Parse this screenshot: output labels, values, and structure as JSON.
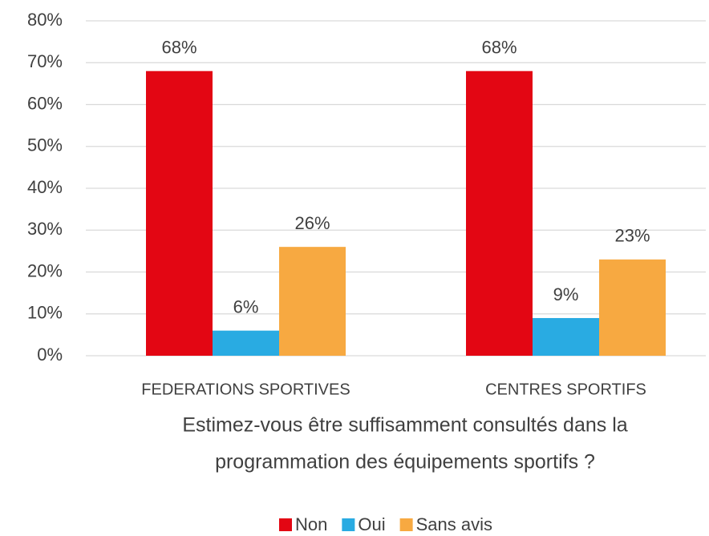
{
  "chart_data": {
    "type": "bar",
    "categories": [
      "FEDERATIONS SPORTIVES",
      "CENTRES SPORTIFS"
    ],
    "x_label": [
      "Estimez-vous être suffisamment consultés dans la",
      "programmation des équipements sportifs ?"
    ],
    "series": [
      {
        "name": "Non",
        "color": "#e30613",
        "values": [
          68,
          68
        ],
        "value_labels": [
          "68%",
          "68%"
        ]
      },
      {
        "name": "Oui",
        "color": "#29abe2",
        "values": [
          6,
          9
        ],
        "value_labels": [
          "6%",
          "9%"
        ]
      },
      {
        "name": "Sans avis",
        "color": "#f7a941",
        "values": [
          26,
          23
        ],
        "value_labels": [
          "26%",
          "23%"
        ]
      }
    ],
    "ylim": [
      0,
      80
    ],
    "yticks": [
      {
        "value": 0,
        "label": "0%"
      },
      {
        "value": 10,
        "label": "10%"
      },
      {
        "value": 20,
        "label": "20%"
      },
      {
        "value": 30,
        "label": "30%"
      },
      {
        "value": 40,
        "label": "40%"
      },
      {
        "value": 50,
        "label": "50%"
      },
      {
        "value": 60,
        "label": "60%"
      },
      {
        "value": 70,
        "label": "70%"
      },
      {
        "value": 80,
        "label": "80%"
      }
    ],
    "grid": true,
    "legend": "bottom"
  }
}
